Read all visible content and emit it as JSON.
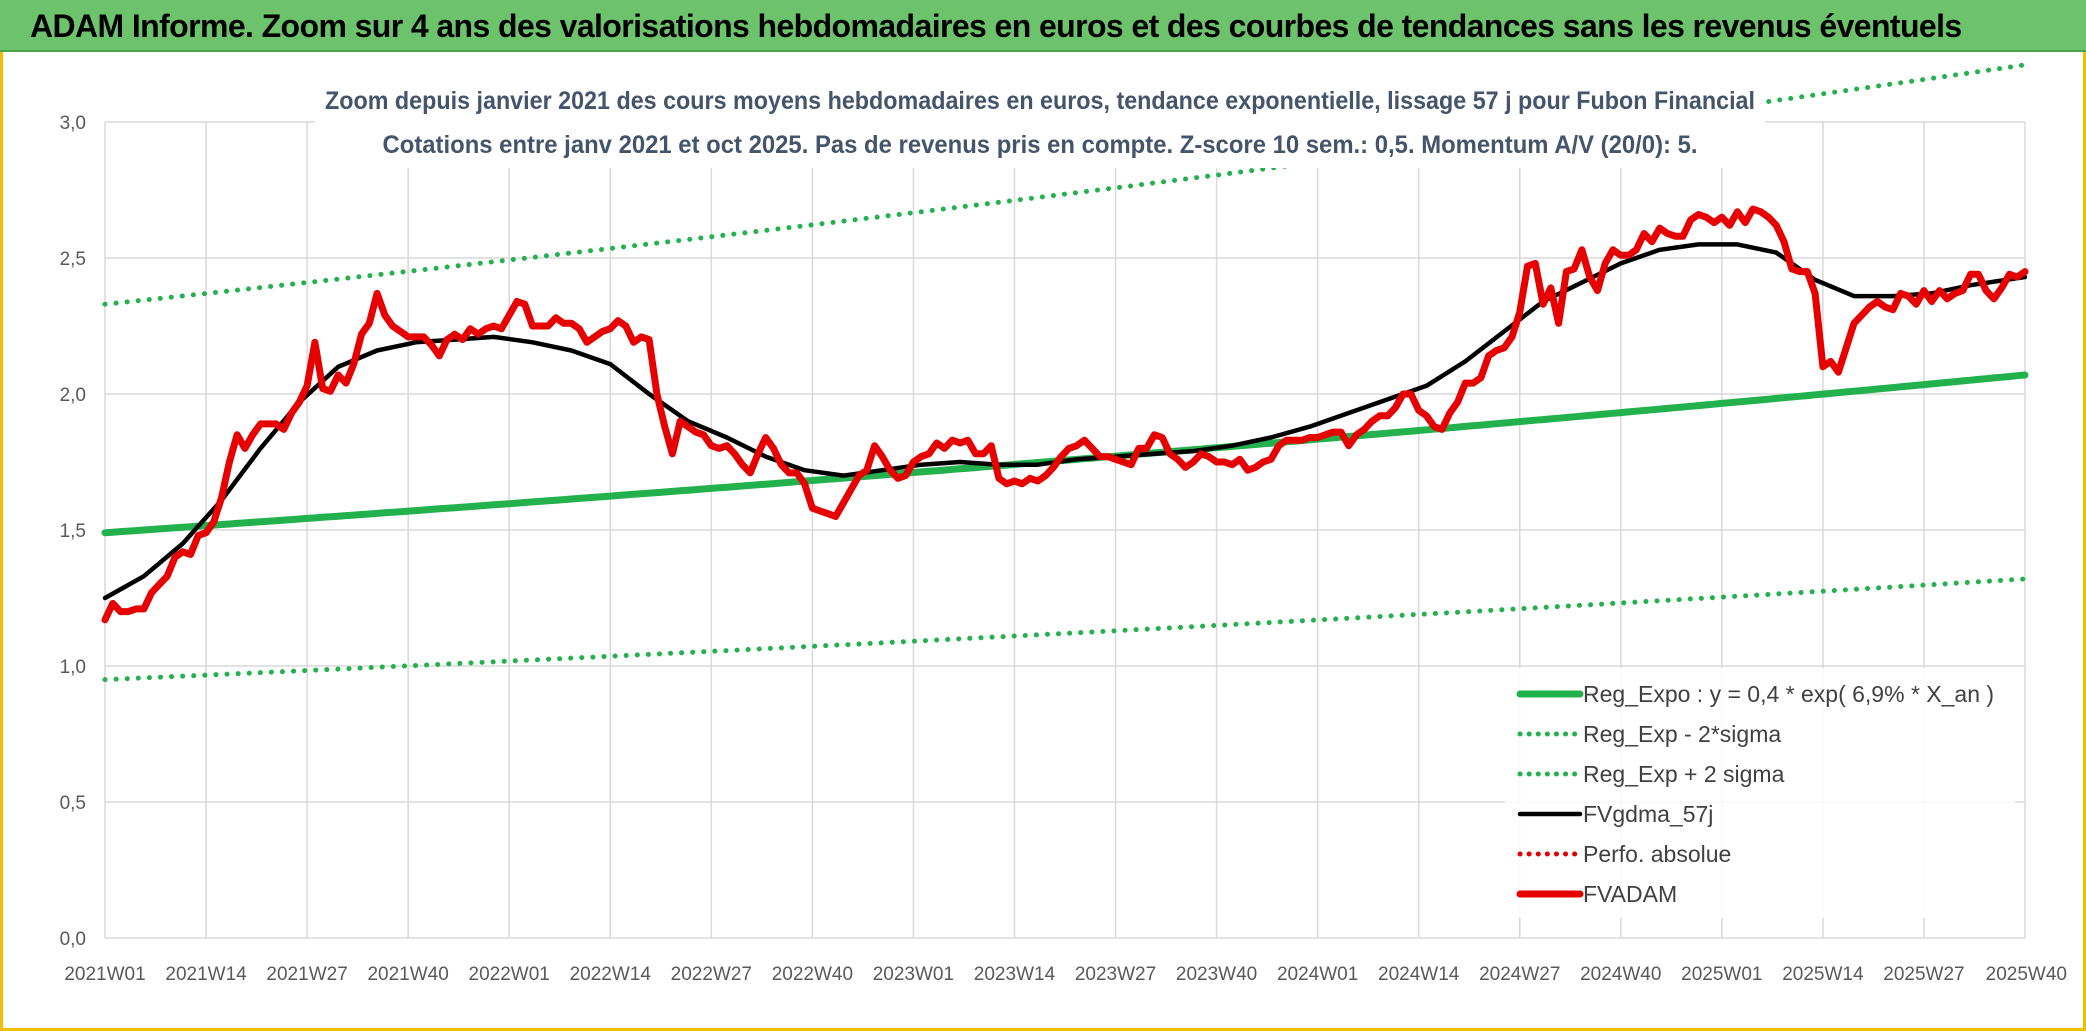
{
  "header": {
    "title": "ADAM Informe. Zoom sur 4 ans des valorisations hebdomadaires en euros et des courbes de tendances sans les revenus éventuels"
  },
  "colors": {
    "title_bar": "#6cc36c",
    "reg_expo": "#22b14c",
    "sigma": "#22b14c",
    "gdma": "#000000",
    "perfo": "#e00000",
    "fvadam": "#e60000",
    "grid": "#d9d9d9",
    "frame": "#f0c000"
  },
  "chart_data": {
    "type": "line",
    "title": "Zoom depuis janvier 2021 des cours moyens hebdomadaires en euros, tendance exponentielle, lissage 57 j pour Fubon Financial",
    "subtitle": "Cotations entre janv 2021 et oct 2025. Pas de revenus pris en compte. Z-score 10 sem.: 0,5. Momentum A/V (20/0): 5.",
    "xlabel": "",
    "ylabel": "",
    "ylim": [
      0,
      3
    ],
    "yticks": [
      "0,0",
      "0,5",
      "1,0",
      "1,5",
      "2,0",
      "2,5",
      "3,0"
    ],
    "x_tick_labels": [
      "2021W01",
      "2021W14",
      "2021W27",
      "2021W40",
      "2022W01",
      "2022W14",
      "2022W27",
      "2022W40",
      "2023W01",
      "2023W14",
      "2023W27",
      "2023W40",
      "2024W01",
      "2024W14",
      "2024W27",
      "2024W40",
      "2025W01",
      "2025W14",
      "2025W27",
      "2025W40"
    ],
    "x_range": [
      "2021W01",
      "2025W40"
    ],
    "grid": "on",
    "legend_position": "bottom-right",
    "series": [
      {
        "name": "Reg_Expo : y = 0,4 * exp( 6,9% *  X_an )",
        "style": "solid-thick",
        "color": "#22b14c",
        "x": [
          0,
          247
        ],
        "values": [
          1.49,
          2.07
        ]
      },
      {
        "name": "Reg_Exp - 2*sigma",
        "style": "dotted",
        "color": "#22b14c",
        "x": [
          0,
          247
        ],
        "values": [
          0.95,
          1.32
        ]
      },
      {
        "name": "Reg_Exp + 2 sigma",
        "style": "dotted",
        "color": "#22b14c",
        "x": [
          0,
          247
        ],
        "values": [
          2.33,
          3.21
        ]
      },
      {
        "name": "FVgdma_57j",
        "style": "solid",
        "color": "#000000",
        "x": [
          0,
          5,
          10,
          15,
          20,
          25,
          30,
          35,
          40,
          45,
          50,
          55,
          60,
          65,
          70,
          75,
          80,
          85,
          90,
          95,
          100,
          105,
          110,
          115,
          120,
          125,
          130,
          135,
          140,
          145,
          150,
          155,
          160,
          165,
          170,
          175,
          180,
          185,
          190,
          195,
          200,
          205,
          210,
          215,
          220,
          225,
          230,
          235,
          240,
          247
        ],
        "values": [
          1.25,
          1.33,
          1.45,
          1.61,
          1.8,
          1.97,
          2.1,
          2.16,
          2.19,
          2.2,
          2.21,
          2.19,
          2.16,
          2.11,
          2.0,
          1.9,
          1.84,
          1.77,
          1.72,
          1.7,
          1.72,
          1.74,
          1.75,
          1.74,
          1.74,
          1.76,
          1.77,
          1.78,
          1.79,
          1.81,
          1.84,
          1.88,
          1.93,
          1.98,
          2.03,
          2.12,
          2.23,
          2.34,
          2.41,
          2.48,
          2.53,
          2.55,
          2.55,
          2.52,
          2.42,
          2.36,
          2.36,
          2.37,
          2.4,
          2.43
        ]
      },
      {
        "name": "Perfo. absolue",
        "style": "dotted",
        "color": "#e00000",
        "x": [],
        "values": []
      },
      {
        "name": "FVADAM",
        "style": "solid-thick",
        "color": "#e60000",
        "x": [
          0,
          1,
          2,
          3,
          4,
          5,
          6,
          7,
          8,
          9,
          10,
          11,
          12,
          13,
          14,
          15,
          16,
          17,
          18,
          19,
          20,
          21,
          22,
          23,
          24,
          25,
          26,
          27,
          28,
          29,
          30,
          31,
          32,
          33,
          34,
          35,
          36,
          37,
          38,
          39,
          40,
          41,
          42,
          43,
          44,
          45,
          46,
          47,
          48,
          49,
          50,
          51,
          52,
          53,
          54,
          55,
          56,
          57,
          58,
          59,
          60,
          61,
          62,
          63,
          64,
          65,
          66,
          67,
          68,
          69,
          70,
          71,
          72,
          73,
          74,
          75,
          76,
          77,
          78,
          79,
          80,
          81,
          82,
          83,
          84,
          85,
          86,
          87,
          88,
          89,
          90,
          91,
          92,
          93,
          94,
          95,
          96,
          97,
          98,
          99,
          100,
          101,
          102,
          103,
          104,
          105,
          106,
          107,
          108,
          109,
          110,
          111,
          112,
          113,
          114,
          115,
          116,
          117,
          118,
          119,
          120,
          121,
          122,
          123,
          124,
          125,
          126,
          127,
          128,
          129,
          130,
          131,
          132,
          133,
          134,
          135,
          136,
          137,
          138,
          139,
          140,
          141,
          142,
          143,
          144,
          145,
          146,
          147,
          148,
          149,
          150,
          151,
          152,
          153,
          154,
          155,
          156,
          157,
          158,
          159,
          160,
          161,
          162,
          163,
          164,
          165,
          166,
          167,
          168,
          169,
          170,
          171,
          172,
          173,
          174,
          175,
          176,
          177,
          178,
          179,
          180,
          181,
          182,
          183,
          184,
          185,
          186,
          187,
          188,
          189,
          190,
          191,
          192,
          193,
          194,
          195,
          196,
          197,
          198,
          199,
          200,
          201,
          202,
          203,
          204,
          205,
          206,
          207,
          208,
          209,
          210,
          211,
          212,
          213,
          214,
          215,
          216,
          217,
          218,
          219,
          220,
          221,
          222,
          223,
          224,
          225,
          226,
          227,
          228,
          229,
          230,
          231,
          232,
          233,
          234,
          235,
          236,
          237,
          238,
          239,
          240,
          241,
          242,
          243,
          244,
          245,
          246,
          247
        ],
        "values": [
          1.17,
          1.23,
          1.2,
          1.2,
          1.21,
          1.21,
          1.27,
          1.3,
          1.33,
          1.4,
          1.42,
          1.41,
          1.48,
          1.49,
          1.53,
          1.62,
          1.75,
          1.85,
          1.8,
          1.85,
          1.89,
          1.89,
          1.89,
          1.87,
          1.93,
          1.97,
          2.03,
          2.19,
          2.02,
          2.01,
          2.07,
          2.04,
          2.11,
          2.22,
          2.26,
          2.37,
          2.29,
          2.25,
          2.23,
          2.21,
          2.21,
          2.21,
          2.18,
          2.14,
          2.2,
          2.22,
          2.2,
          2.24,
          2.22,
          2.24,
          2.25,
          2.24,
          2.29,
          2.34,
          2.33,
          2.25,
          2.25,
          2.25,
          2.28,
          2.26,
          2.26,
          2.24,
          2.19,
          2.21,
          2.23,
          2.24,
          2.27,
          2.25,
          2.19,
          2.21,
          2.2,
          2.0,
          1.88,
          1.78,
          1.9,
          1.88,
          1.86,
          1.85,
          1.81,
          1.8,
          1.81,
          1.78,
          1.74,
          1.71,
          1.78,
          1.84,
          1.8,
          1.74,
          1.71,
          1.71,
          1.67,
          1.58,
          1.57,
          1.56,
          1.55,
          1.6,
          1.65,
          1.7,
          1.72,
          1.81,
          1.77,
          1.72,
          1.69,
          1.7,
          1.75,
          1.77,
          1.78,
          1.82,
          1.8,
          1.83,
          1.82,
          1.83,
          1.78,
          1.78,
          1.81,
          1.69,
          1.67,
          1.68,
          1.67,
          1.69,
          1.68,
          1.7,
          1.73,
          1.77,
          1.8,
          1.81,
          1.83,
          1.8,
          1.77,
          1.77,
          1.76,
          1.75,
          1.74,
          1.8,
          1.8,
          1.85,
          1.84,
          1.78,
          1.76,
          1.73,
          1.75,
          1.78,
          1.77,
          1.75,
          1.75,
          1.74,
          1.76,
          1.72,
          1.73,
          1.75,
          1.76,
          1.81,
          1.83,
          1.83,
          1.83,
          1.84,
          1.84,
          1.85,
          1.86,
          1.86,
          1.81,
          1.85,
          1.87,
          1.9,
          1.92,
          1.92,
          1.95,
          2.0,
          2.0,
          1.94,
          1.92,
          1.88,
          1.87,
          1.93,
          1.97,
          2.04,
          2.04,
          2.06,
          2.14,
          2.16,
          2.17,
          2.21,
          2.3,
          2.47,
          2.48,
          2.33,
          2.39,
          2.26,
          2.45,
          2.46,
          2.53,
          2.43,
          2.38,
          2.48,
          2.53,
          2.51,
          2.51,
          2.53,
          2.59,
          2.56,
          2.61,
          2.59,
          2.58,
          2.58,
          2.64,
          2.66,
          2.65,
          2.63,
          2.65,
          2.62,
          2.67,
          2.63,
          2.68,
          2.67,
          2.65,
          2.62,
          2.56,
          2.46,
          2.45,
          2.45,
          2.37,
          2.1,
          2.12,
          2.08,
          2.17,
          2.26,
          2.29,
          2.32,
          2.34,
          2.32,
          2.31,
          2.37,
          2.36,
          2.33,
          2.38,
          2.34,
          2.38,
          2.35,
          2.37,
          2.38,
          2.44,
          2.44,
          2.38,
          2.35,
          2.39,
          2.44,
          2.43,
          2.45
        ]
      }
    ]
  },
  "legend": {
    "items": [
      {
        "label": "Reg_Expo : y = 0,4 * exp( 6,9% *  X_an )"
      },
      {
        "label": "Reg_Exp - 2*sigma"
      },
      {
        "label": "Reg_Exp + 2 sigma"
      },
      {
        "label": "FVgdma_57j"
      },
      {
        "label": "Perfo. absolue"
      },
      {
        "label": "FVADAM"
      }
    ]
  }
}
